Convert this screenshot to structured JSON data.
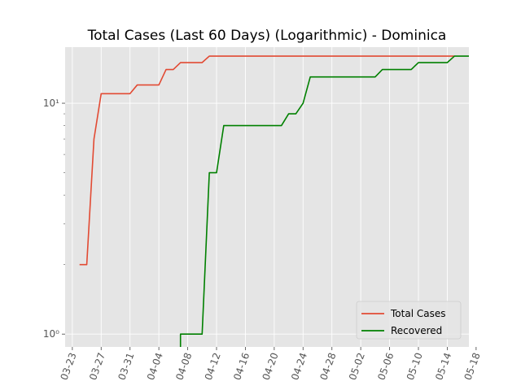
{
  "chart_data": {
    "type": "line",
    "title": "Total Cases (Last 60 Days) (Logarithmic) - Dominica",
    "xlabel": "",
    "ylabel": "",
    "y_scale": "log",
    "ylim": [
      0.88,
      17.5
    ],
    "xlim": [
      "2020-03-22",
      "2020-05-17"
    ],
    "grid": true,
    "legend_position": "lower-right",
    "x_ticks": [
      "03-23",
      "03-27",
      "03-31",
      "04-04",
      "04-08",
      "04-12",
      "04-16",
      "04-20",
      "04-24",
      "04-28",
      "05-02",
      "05-06",
      "05-10",
      "05-14",
      "05-18"
    ],
    "y_ticks": [
      {
        "value": 1,
        "label": "10⁰"
      },
      {
        "value": 10,
        "label": "10¹"
      }
    ],
    "colors": {
      "background": "#e5e5e5",
      "grid": "#ffffff",
      "total_cases": "#e24a33",
      "recovered": "#008000",
      "tick": "#555555"
    },
    "series": [
      {
        "name": "Total Cases",
        "color": "#e24a33",
        "points": [
          [
            "2020-03-24",
            2
          ],
          [
            "2020-03-25",
            2
          ],
          [
            "2020-03-26",
            7
          ],
          [
            "2020-03-27",
            11
          ],
          [
            "2020-03-28",
            11
          ],
          [
            "2020-03-29",
            11
          ],
          [
            "2020-03-30",
            11
          ],
          [
            "2020-03-31",
            11
          ],
          [
            "2020-04-01",
            12
          ],
          [
            "2020-04-02",
            12
          ],
          [
            "2020-04-03",
            12
          ],
          [
            "2020-04-04",
            12
          ],
          [
            "2020-04-05",
            14
          ],
          [
            "2020-04-06",
            14
          ],
          [
            "2020-04-07",
            15
          ],
          [
            "2020-04-08",
            15
          ],
          [
            "2020-04-09",
            15
          ],
          [
            "2020-04-10",
            15
          ],
          [
            "2020-04-11",
            16
          ],
          [
            "2020-04-12",
            16
          ],
          [
            "2020-04-20",
            16
          ],
          [
            "2020-04-30",
            16
          ],
          [
            "2020-05-10",
            16
          ],
          [
            "2020-05-15",
            16
          ]
        ]
      },
      {
        "name": "Recovered",
        "color": "#008000",
        "points": [
          [
            "2020-04-07",
            0.6
          ],
          [
            "2020-04-07",
            1
          ],
          [
            "2020-04-08",
            1
          ],
          [
            "2020-04-09",
            1
          ],
          [
            "2020-04-10",
            1
          ],
          [
            "2020-04-11",
            5
          ],
          [
            "2020-04-12",
            5
          ],
          [
            "2020-04-13",
            8
          ],
          [
            "2020-04-14",
            8
          ],
          [
            "2020-04-15",
            8
          ],
          [
            "2020-04-16",
            8
          ],
          [
            "2020-04-17",
            8
          ],
          [
            "2020-04-18",
            8
          ],
          [
            "2020-04-19",
            8
          ],
          [
            "2020-04-20",
            8
          ],
          [
            "2020-04-21",
            8
          ],
          [
            "2020-04-22",
            9
          ],
          [
            "2020-04-23",
            9
          ],
          [
            "2020-04-24",
            10
          ],
          [
            "2020-04-25",
            13
          ],
          [
            "2020-04-26",
            13
          ],
          [
            "2020-04-27",
            13
          ],
          [
            "2020-04-28",
            13
          ],
          [
            "2020-04-29",
            13
          ],
          [
            "2020-04-30",
            13
          ],
          [
            "2020-05-01",
            13
          ],
          [
            "2020-05-02",
            13
          ],
          [
            "2020-05-03",
            13
          ],
          [
            "2020-05-04",
            13
          ],
          [
            "2020-05-05",
            14
          ],
          [
            "2020-05-06",
            14
          ],
          [
            "2020-05-07",
            14
          ],
          [
            "2020-05-08",
            14
          ],
          [
            "2020-05-09",
            14
          ],
          [
            "2020-05-10",
            15
          ],
          [
            "2020-05-11",
            15
          ],
          [
            "2020-05-12",
            15
          ],
          [
            "2020-05-13",
            15
          ],
          [
            "2020-05-14",
            15
          ],
          [
            "2020-05-15",
            16
          ],
          [
            "2020-05-16",
            16
          ],
          [
            "2020-05-17",
            16
          ],
          [
            "2020-05-18",
            16
          ]
        ]
      }
    ]
  }
}
